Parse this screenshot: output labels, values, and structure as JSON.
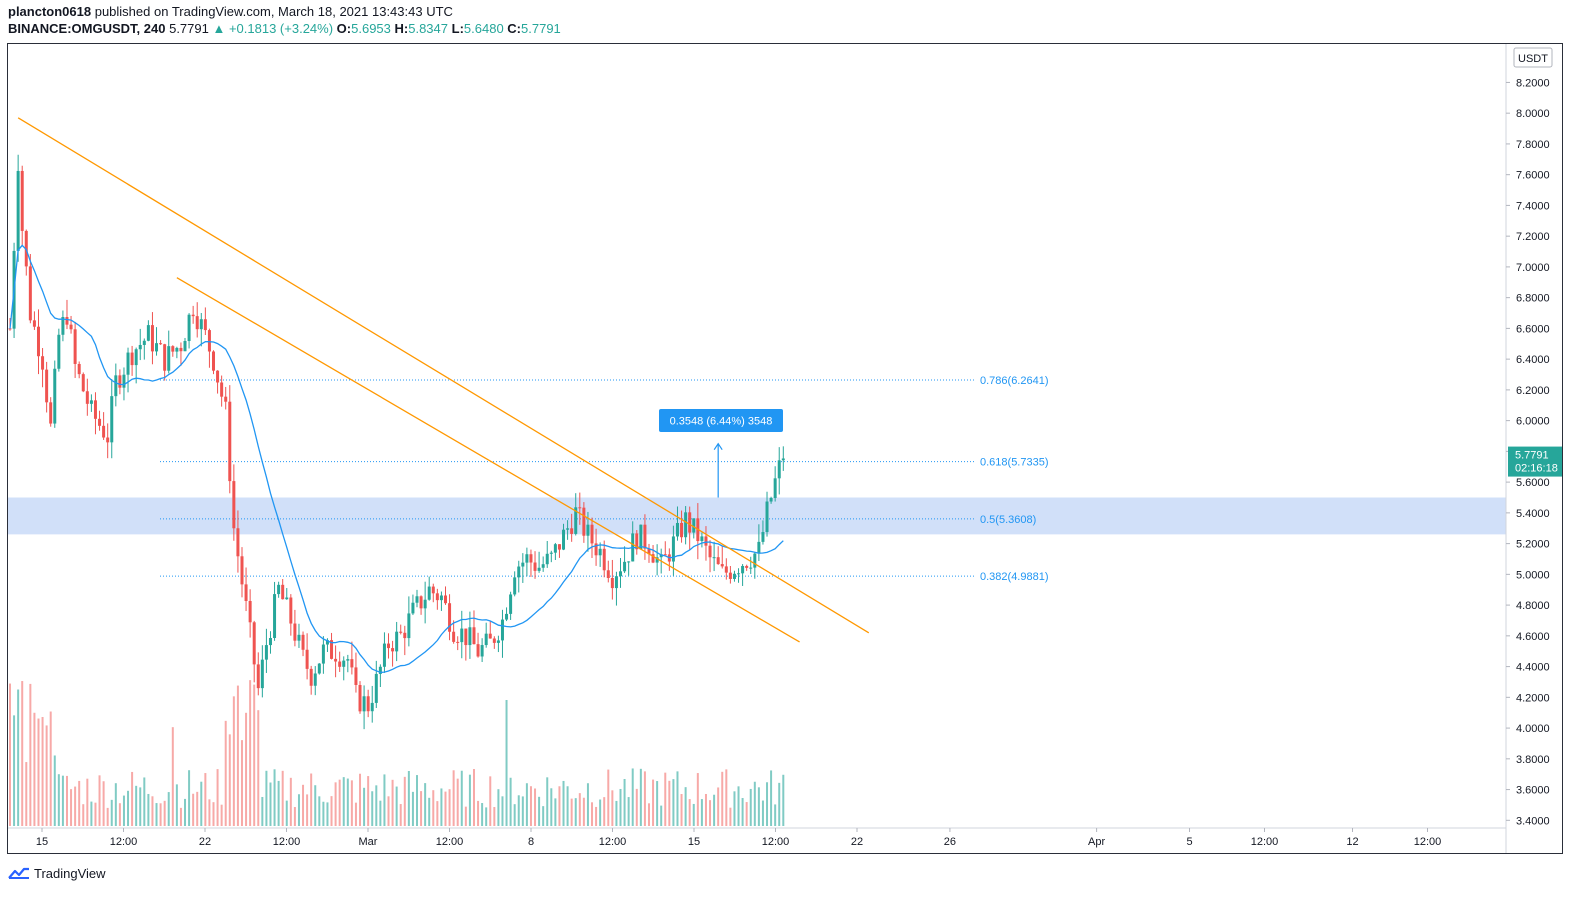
{
  "header": {
    "author": "plancton0618",
    "published_text": "published on TradingView.com, March 18, 2021 13:43:43 UTC",
    "symbol": "BINANCE:OMGUSDT, 240",
    "last": "5.7791",
    "change": "▲ +0.1813 (+3.24%)",
    "ohlc": [
      {
        "label": "O:",
        "value": "5.6953"
      },
      {
        "label": "H:",
        "value": "5.8347"
      },
      {
        "label": "L:",
        "value": "5.6480"
      },
      {
        "label": "C:",
        "value": "5.7791"
      }
    ]
  },
  "footer": {
    "brand": "TradingView"
  },
  "colors": {
    "bull": "#26a69a",
    "bear": "#ef5350",
    "vol_bull": "#80cbc4",
    "vol_bear": "#f7a9a7",
    "ma": "#2196f3",
    "trendline": "#ff9800",
    "zone": "#c5d8f7",
    "fib": "#2196f3",
    "price_tag": "#26a69a"
  },
  "chart_data": {
    "type": "candlestick",
    "symbol": "BINANCE:OMGUSDT",
    "interval": "240",
    "currency_label": "USDT",
    "ylim": [
      3.35,
      8.45
    ],
    "y_ticks": [
      "8.2000",
      "8.0000",
      "7.8000",
      "7.6000",
      "7.4000",
      "7.2000",
      "7.0000",
      "6.8000",
      "6.6000",
      "6.4000",
      "6.2000",
      "6.0000",
      "5.8000",
      "5.6000",
      "5.4000",
      "5.2000",
      "5.0000",
      "4.8000",
      "4.6000",
      "4.4000",
      "4.2000",
      "4.0000",
      "3.8000",
      "3.6000",
      "3.4000"
    ],
    "x_ticks": [
      {
        "label": "15",
        "day": 15.0
      },
      {
        "label": "12:00",
        "day": 15.5
      },
      {
        "label": "22",
        "day": 16.0
      },
      {
        "label": "12:00",
        "day": 16.5
      },
      {
        "label": "Mar",
        "day": 17.0
      },
      {
        "label": "12:00",
        "day": 17.5
      },
      {
        "label": "8",
        "day": 18.0
      },
      {
        "label": "12:00",
        "day": 18.5
      },
      {
        "label": "15",
        "day": 19.0
      },
      {
        "label": "12:00",
        "day": 19.5
      },
      {
        "label": "22",
        "day": 20.0
      },
      {
        "label": "26",
        "day": 20.57
      },
      {
        "label": "Apr",
        "day": 21.47
      },
      {
        "label": "5",
        "day": 22.04
      },
      {
        "label": "12:00",
        "day": 22.5
      },
      {
        "label": "12",
        "day": 23.04
      },
      {
        "label": "12:00",
        "day": 23.5
      }
    ],
    "x_axis_note": "compressed/log-like time axis as rendered; tick labels copied from chart",
    "price_path": [
      [
        0,
        6.6
      ],
      [
        2,
        7.7
      ],
      [
        3,
        7.25
      ],
      [
        5,
        6.7
      ],
      [
        8,
        6.4
      ],
      [
        10,
        5.95
      ],
      [
        12,
        6.55
      ],
      [
        14,
        6.7
      ],
      [
        16,
        6.35
      ],
      [
        20,
        6.05
      ],
      [
        24,
        5.9
      ],
      [
        26,
        6.25
      ],
      [
        30,
        6.45
      ],
      [
        34,
        6.55
      ],
      [
        38,
        6.4
      ],
      [
        42,
        6.5
      ],
      [
        45,
        6.75
      ],
      [
        48,
        6.55
      ],
      [
        50,
        6.4
      ],
      [
        53,
        6.05
      ],
      [
        55,
        5.3
      ],
      [
        57,
        4.95
      ],
      [
        59,
        4.6
      ],
      [
        61,
        4.25
      ],
      [
        63,
        4.55
      ],
      [
        66,
        4.9
      ],
      [
        69,
        4.7
      ],
      [
        72,
        4.45
      ],
      [
        74,
        4.35
      ],
      [
        77,
        4.5
      ],
      [
        80,
        4.5
      ],
      [
        83,
        4.45
      ],
      [
        85,
        4.2
      ],
      [
        88,
        4.15
      ],
      [
        90,
        4.3
      ],
      [
        93,
        4.55
      ],
      [
        96,
        4.6
      ],
      [
        99,
        4.75
      ],
      [
        103,
        4.9
      ],
      [
        106,
        4.85
      ],
      [
        109,
        4.65
      ],
      [
        112,
        4.6
      ],
      [
        115,
        4.5
      ],
      [
        118,
        4.55
      ],
      [
        121,
        4.7
      ],
      [
        124,
        5.05
      ],
      [
        127,
        5.1
      ],
      [
        130,
        5.05
      ],
      [
        133,
        5.1
      ],
      [
        136,
        5.25
      ],
      [
        139,
        5.4
      ],
      [
        142,
        5.25
      ],
      [
        145,
        5.15
      ],
      [
        148,
        5.0
      ],
      [
        151,
        5.1
      ],
      [
        154,
        5.25
      ],
      [
        157,
        5.2
      ],
      [
        160,
        5.05
      ],
      [
        163,
        5.2
      ],
      [
        166,
        5.35
      ],
      [
        169,
        5.25
      ],
      [
        172,
        5.1
      ],
      [
        175,
        5.0
      ],
      [
        178,
        5.05
      ],
      [
        181,
        5.1
      ],
      [
        184,
        5.15
      ],
      [
        186,
        5.4
      ],
      [
        188,
        5.6
      ],
      [
        190,
        5.78
      ]
    ],
    "moving_average": {
      "color": "#2196f3"
    },
    "volume": {
      "shown": true
    },
    "trendlines": [
      {
        "from": {
          "bar": 2,
          "price": 7.97
        },
        "to": {
          "bar": 211,
          "price": 4.62
        }
      },
      {
        "from": {
          "bar": 41,
          "price": 6.93
        },
        "to": {
          "bar": 194,
          "price": 4.56
        }
      }
    ],
    "support_zone": {
      "low": 5.26,
      "high": 5.5
    },
    "fib_levels": [
      {
        "label": "0.786(6.2641)",
        "price": 6.2641
      },
      {
        "label": "0.618(5.7335)",
        "price": 5.7335
      },
      {
        "label": "0.5(5.3608)",
        "price": 5.3608
      },
      {
        "label": "0.382(4.9881)",
        "price": 4.9881
      }
    ],
    "measure": {
      "label": "0.3548 (6.44%) 3548",
      "from_price": 5.5,
      "to_price": 5.85
    },
    "last_price_tag": {
      "price": "5.7791",
      "countdown": "02:16:18",
      "value": 5.7791
    }
  }
}
